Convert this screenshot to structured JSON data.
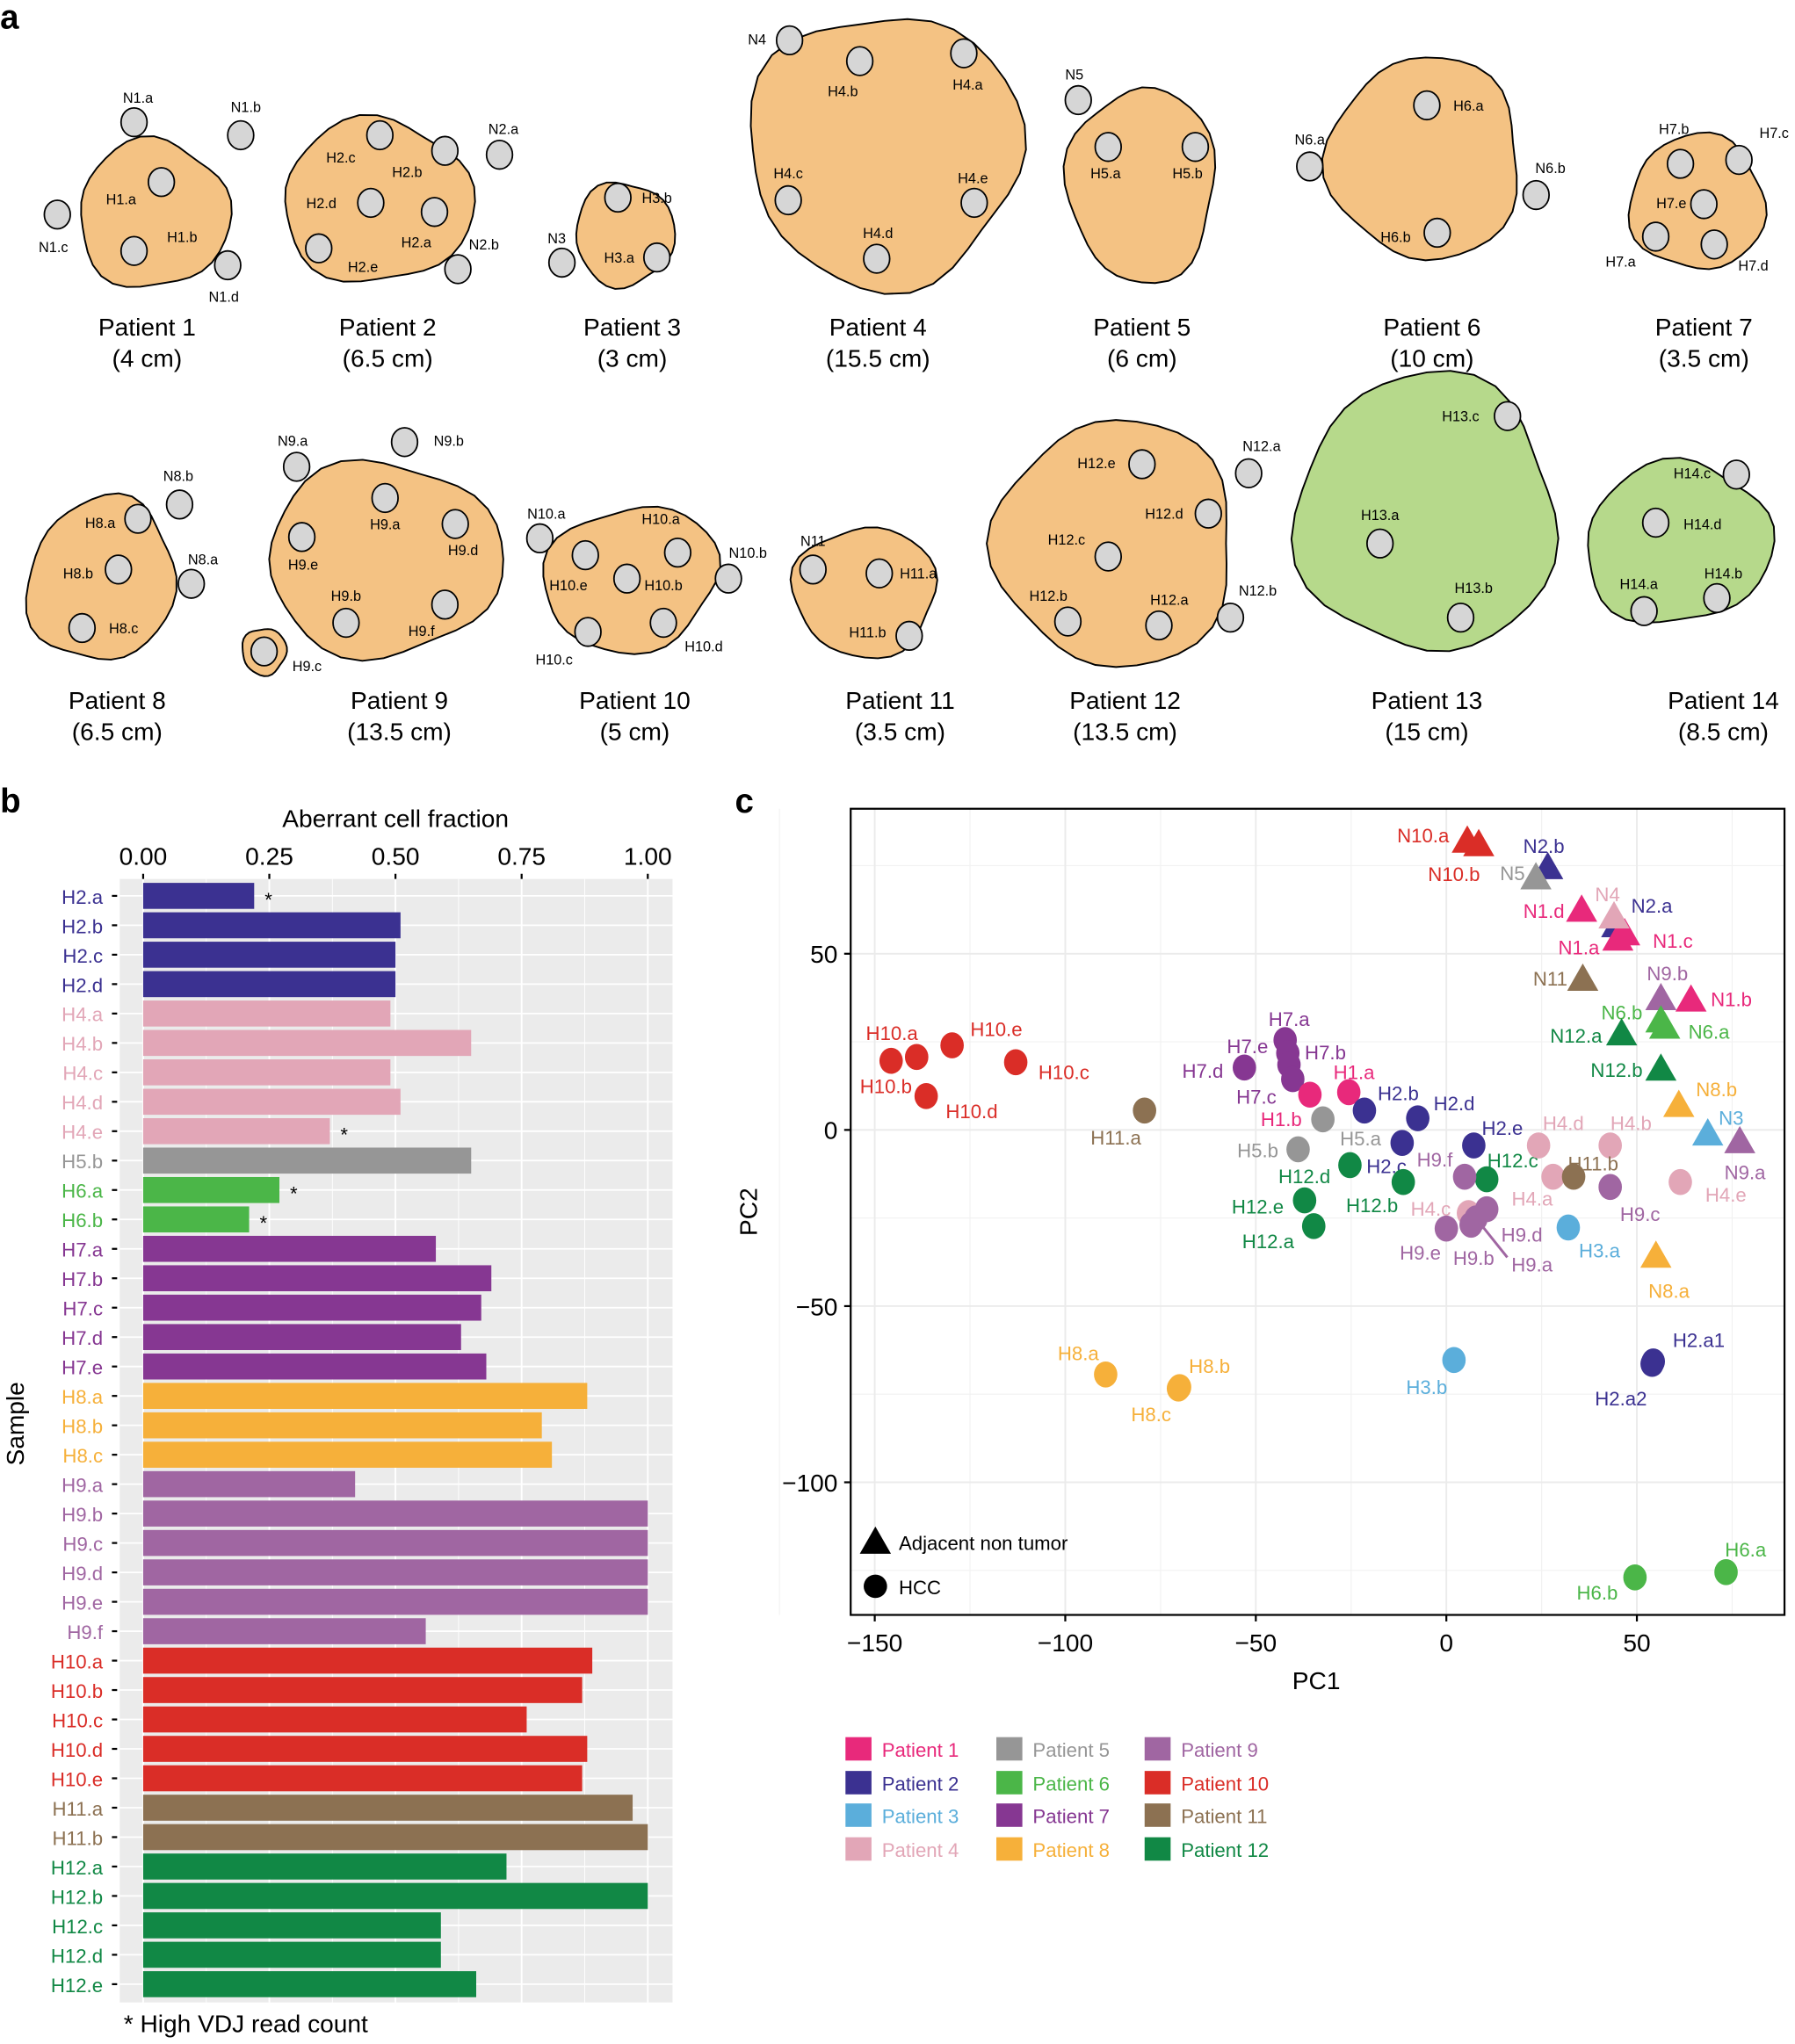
{
  "panel_labels": {
    "a": "a",
    "b": "b",
    "c": "c"
  },
  "patient_colors": {
    "Patient 1": "#E8297B",
    "Patient 2": "#3B3191",
    "Patient 3": "#5BAEDB",
    "Patient 4": "#E2A6B7",
    "Patient 5": "#969696",
    "Patient 6": "#4BB648",
    "Patient 7": "#863792",
    "Patient 8": "#F6B03A",
    "Patient 9": "#A066A2",
    "Patient 10": "#DA2D27",
    "Patient 11": "#8C7152",
    "Patient 12": "#118845"
  },
  "panel_a": {
    "tumor_colors": {
      "hcc_orange": "#F4C283",
      "green": "#B6D98B"
    },
    "patients": [
      {
        "name": "Patient 1",
        "size": "(4 cm)",
        "tumor_color": "#F4C283",
        "samples": [
          "H1.a",
          "H1.b",
          "N1.a",
          "N1.b",
          "N1.c",
          "N1.d"
        ]
      },
      {
        "name": "Patient 2",
        "size": "(6.5 cm)",
        "tumor_color": "#F4C283",
        "samples": [
          "H2.a",
          "H2.b",
          "H2.c",
          "H2.d",
          "H2.e",
          "N2.a",
          "N2.b"
        ]
      },
      {
        "name": "Patient 3",
        "size": "(3 cm)",
        "tumor_color": "#F4C283",
        "samples": [
          "H3.a",
          "H3.b",
          "N3"
        ]
      },
      {
        "name": "Patient 4",
        "size": "(15.5 cm)",
        "tumor_color": "#F4C283",
        "samples": [
          "H4.a",
          "H4.b",
          "H4.c",
          "H4.d",
          "H4.e",
          "N4"
        ]
      },
      {
        "name": "Patient 5",
        "size": "(6 cm)",
        "tumor_color": "#F4C283",
        "samples": [
          "H5.a",
          "H5.b",
          "N5"
        ]
      },
      {
        "name": "Patient 6",
        "size": "(10 cm)",
        "tumor_color": "#F4C283",
        "samples": [
          "H6.a",
          "H6.b",
          "N6.a",
          "N6.b"
        ]
      },
      {
        "name": "Patient 7",
        "size": "(3.5 cm)",
        "tumor_color": "#F4C283",
        "samples": [
          "H7.a",
          "H7.b",
          "H7.c",
          "H7.d",
          "H7.e"
        ]
      },
      {
        "name": "Patient 8",
        "size": "(6.5 cm)",
        "tumor_color": "#F4C283",
        "samples": [
          "H8.a",
          "H8.b",
          "H8.c",
          "N8.a",
          "N8.b"
        ]
      },
      {
        "name": "Patient 9",
        "size": "(13.5 cm)",
        "tumor_color": "#F4C283",
        "samples": [
          "H9.a",
          "H9.b",
          "H9.c",
          "H9.d",
          "H9.e",
          "H9.f",
          "N9.a",
          "N9.b"
        ]
      },
      {
        "name": "Patient 10",
        "size": "(5 cm)",
        "tumor_color": "#F4C283",
        "samples": [
          "H10.a",
          "H10.b",
          "H10.c",
          "H10.d",
          "H10.e",
          "N10.a",
          "N10.b"
        ]
      },
      {
        "name": "Patient 11",
        "size": "(3.5 cm)",
        "tumor_color": "#F4C283",
        "samples": [
          "H11.a",
          "H11.b",
          "N11"
        ]
      },
      {
        "name": "Patient 12",
        "size": "(13.5 cm)",
        "tumor_color": "#F4C283",
        "samples": [
          "H12.a",
          "H12.b",
          "H12.c",
          "H12.d",
          "H12.e",
          "N12.a",
          "N12.b"
        ]
      },
      {
        "name": "Patient 13",
        "size": "(15 cm)",
        "tumor_color": "#B6D98B",
        "samples": [
          "H13.a",
          "H13.b",
          "H13.c"
        ]
      },
      {
        "name": "Patient 14",
        "size": "(8.5 cm)",
        "tumor_color": "#B6D98B",
        "samples": [
          "H14.a",
          "H14.b",
          "H14.c",
          "H14.d"
        ]
      }
    ]
  },
  "chart_data": [
    {
      "type": "bar",
      "orientation": "horizontal",
      "title": "Aberrant cell fraction",
      "xlabel": "Aberrant cell fraction",
      "ylabel": "Sample",
      "xlim": [
        0,
        1
      ],
      "xticks": [
        "0.00",
        "0.25",
        "0.50",
        "0.75",
        "1.00"
      ],
      "grid": true,
      "categories": [
        "H2.a",
        "H2.b",
        "H2.c",
        "H2.d",
        "H4.a",
        "H4.b",
        "H4.c",
        "H4.d",
        "H4.e",
        "H5.b",
        "H6.a",
        "H6.b",
        "H7.a",
        "H7.b",
        "H7.c",
        "H7.d",
        "H7.e",
        "H8.a",
        "H8.b",
        "H8.c",
        "H9.a",
        "H9.b",
        "H9.c",
        "H9.d",
        "H9.e",
        "H9.f",
        "H10.a",
        "H10.b",
        "H10.c",
        "H10.d",
        "H10.e",
        "H11.a",
        "H11.b",
        "H12.a",
        "H12.b",
        "H12.c",
        "H12.d",
        "H12.e"
      ],
      "values": [
        0.22,
        0.51,
        0.5,
        0.5,
        0.49,
        0.65,
        0.49,
        0.51,
        0.37,
        0.65,
        0.27,
        0.21,
        0.58,
        0.69,
        0.67,
        0.63,
        0.68,
        0.88,
        0.79,
        0.81,
        0.42,
        1.0,
        1.0,
        1.0,
        1.0,
        0.56,
        0.89,
        0.87,
        0.76,
        0.88,
        0.87,
        0.97,
        1.0,
        0.72,
        1.0,
        0.59,
        0.59,
        0.66
      ],
      "patients": [
        "Patient 2",
        "Patient 2",
        "Patient 2",
        "Patient 2",
        "Patient 4",
        "Patient 4",
        "Patient 4",
        "Patient 4",
        "Patient 4",
        "Patient 5",
        "Patient 6",
        "Patient 6",
        "Patient 7",
        "Patient 7",
        "Patient 7",
        "Patient 7",
        "Patient 7",
        "Patient 8",
        "Patient 8",
        "Patient 8",
        "Patient 9",
        "Patient 9",
        "Patient 9",
        "Patient 9",
        "Patient 9",
        "Patient 9",
        "Patient 10",
        "Patient 10",
        "Patient 10",
        "Patient 10",
        "Patient 10",
        "Patient 11",
        "Patient 11",
        "Patient 12",
        "Patient 12",
        "Patient 12",
        "Patient 12",
        "Patient 12"
      ],
      "asterisk_samples": [
        "H2.a",
        "H4.e",
        "H6.a",
        "H6.b"
      ],
      "asterisk": "*",
      "footnote": "* High VDJ read count"
    },
    {
      "type": "scatter",
      "xlabel": "PC1",
      "ylabel": "PC2",
      "xlim": [
        -156,
        89
      ],
      "ylim": [
        -138,
        91
      ],
      "xticks": [
        "−150",
        "−100",
        "−50",
        "0",
        "50"
      ],
      "xtick_values": [
        -150,
        -100,
        -50,
        0,
        50
      ],
      "yticks": [
        "50",
        "0",
        "−50",
        "−100"
      ],
      "ytick_values": [
        50,
        0,
        -50,
        -100
      ],
      "grid": true,
      "shape_legend": [
        {
          "shape": "triangle",
          "label": "Adjacent non tumor"
        },
        {
          "shape": "circle",
          "label": "HCC"
        }
      ],
      "shape_legend_placement": "bottom-left inside",
      "color_legend": [
        "Patient 1",
        "Patient 5",
        "Patient 9",
        "Patient 2",
        "Patient 6",
        "Patient 10",
        "Patient 3",
        "Patient 7",
        "Patient 11",
        "Patient 4",
        "Patient 8",
        "Patient 12"
      ],
      "color_legend_placement": "below",
      "points": [
        {
          "name": "N10.a",
          "pc1": 5.5,
          "pc2": 82,
          "patient": "Patient 10",
          "shape": "triangle"
        },
        {
          "name": "N10.b",
          "pc1": 8.5,
          "pc2": 81,
          "patient": "Patient 10",
          "shape": "triangle"
        },
        {
          "name": "N2.b",
          "pc1": 26.6,
          "pc2": 74.5,
          "patient": "Patient 2",
          "shape": "triangle"
        },
        {
          "name": "N5",
          "pc1": 23.5,
          "pc2": 71.6,
          "patient": "Patient 5",
          "shape": "triangle"
        },
        {
          "name": "N1.d",
          "pc1": 35.5,
          "pc2": 62.4,
          "patient": "Patient 1",
          "shape": "triangle"
        },
        {
          "name": "N2.a",
          "pc1": 44.7,
          "pc2": 58,
          "patient": "Patient 2",
          "shape": "triangle"
        },
        {
          "name": "N1.c",
          "pc1": 46.8,
          "pc2": 55.7,
          "patient": "Patient 1",
          "shape": "triangle"
        },
        {
          "name": "N1.a",
          "pc1": 45,
          "pc2": 54.2,
          "patient": "Patient 1",
          "shape": "triangle"
        },
        {
          "name": "N4",
          "pc1": 44,
          "pc2": 60.5,
          "patient": "Patient 4",
          "shape": "triangle"
        },
        {
          "name": "N11",
          "pc1": 35.8,
          "pc2": 42.8,
          "patient": "Patient 11",
          "shape": "triangle"
        },
        {
          "name": "N9.b",
          "pc1": 56.3,
          "pc2": 37.3,
          "patient": "Patient 9",
          "shape": "triangle"
        },
        {
          "name": "N1.b",
          "pc1": 64.2,
          "pc2": 36.9,
          "patient": "Patient 1",
          "shape": "triangle"
        },
        {
          "name": "N6.b",
          "pc1": 56.3,
          "pc2": 31,
          "patient": "Patient 6",
          "shape": "triangle"
        },
        {
          "name": "N6.a",
          "pc1": 57.3,
          "pc2": 29.2,
          "patient": "Patient 6",
          "shape": "triangle"
        },
        {
          "name": "N12.a",
          "pc1": 46,
          "pc2": 27.3,
          "patient": "Patient 12",
          "shape": "triangle"
        },
        {
          "name": "N12.b",
          "pc1": 56.3,
          "pc2": 17.3,
          "patient": "Patient 12",
          "shape": "triangle"
        },
        {
          "name": "N8.b",
          "pc1": 61,
          "pc2": 7,
          "patient": "Patient 8",
          "shape": "triangle"
        },
        {
          "name": "N3",
          "pc1": 68.6,
          "pc2": -1.1,
          "patient": "Patient 3",
          "shape": "triangle"
        },
        {
          "name": "N9.a",
          "pc1": 77,
          "pc2": -3.3,
          "patient": "Patient 9",
          "shape": "triangle"
        },
        {
          "name": "N8.a",
          "pc1": 55,
          "pc2": -35.8,
          "patient": "Patient 8",
          "shape": "triangle"
        },
        {
          "name": "H10.a",
          "pc1": -139,
          "pc2": 20.7,
          "patient": "Patient 10",
          "shape": "circle"
        },
        {
          "name": "H10.b",
          "pc1": -145.7,
          "pc2": 19.6,
          "patient": "Patient 10",
          "shape": "circle"
        },
        {
          "name": "H10.e",
          "pc1": -129.7,
          "pc2": 24,
          "patient": "Patient 10",
          "shape": "circle"
        },
        {
          "name": "H10.d",
          "pc1": -136.5,
          "pc2": 9.6,
          "patient": "Patient 10",
          "shape": "circle"
        },
        {
          "name": "H10.c",
          "pc1": -113,
          "pc2": 19.2,
          "patient": "Patient 10",
          "shape": "circle"
        },
        {
          "name": "H11.a",
          "pc1": -79.2,
          "pc2": 5.5,
          "patient": "Patient 11",
          "shape": "circle"
        },
        {
          "name": "H7.d",
          "pc1": -53,
          "pc2": 17.7,
          "patient": "Patient 7",
          "shape": "circle"
        },
        {
          "name": "H7.a",
          "pc1": -42.3,
          "pc2": 25.5,
          "patient": "Patient 7",
          "shape": "circle"
        },
        {
          "name": "H7.e",
          "pc1": -41.6,
          "pc2": 21.8,
          "patient": "Patient 7",
          "shape": "circle"
        },
        {
          "name": "H7.b",
          "pc1": -41.3,
          "pc2": 18.5,
          "patient": "Patient 7",
          "shape": "circle"
        },
        {
          "name": "H7.c",
          "pc1": -40.3,
          "pc2": 14.4,
          "patient": "Patient 7",
          "shape": "circle"
        },
        {
          "name": "H1.b",
          "pc1": -35.8,
          "pc2": 10,
          "patient": "Patient 1",
          "shape": "circle"
        },
        {
          "name": "H1.a",
          "pc1": -25.6,
          "pc2": 10.7,
          "patient": "Patient 1",
          "shape": "circle"
        },
        {
          "name": "H5.a",
          "pc1": -32.4,
          "pc2": 3,
          "patient": "Patient 5",
          "shape": "circle"
        },
        {
          "name": "H5.b",
          "pc1": -38.9,
          "pc2": -5.5,
          "patient": "Patient 5",
          "shape": "circle"
        },
        {
          "name": "H2.b",
          "pc1": -21.5,
          "pc2": 5.5,
          "patient": "Patient 2",
          "shape": "circle"
        },
        {
          "name": "H2.d",
          "pc1": -7.5,
          "pc2": 3.3,
          "patient": "Patient 2",
          "shape": "circle"
        },
        {
          "name": "H2.e",
          "pc1": 7.2,
          "pc2": -4.4,
          "patient": "Patient 2",
          "shape": "circle"
        },
        {
          "name": "H2.c",
          "pc1": -11.6,
          "pc2": -3.7,
          "patient": "Patient 2",
          "shape": "circle"
        },
        {
          "name": "H12.d",
          "pc1": -25.3,
          "pc2": -10,
          "patient": "Patient 12",
          "shape": "circle"
        },
        {
          "name": "H12.b",
          "pc1": -11.3,
          "pc2": -14.8,
          "patient": "Patient 12",
          "shape": "circle"
        },
        {
          "name": "H12.c",
          "pc1": 10.6,
          "pc2": -14,
          "patient": "Patient 12",
          "shape": "circle"
        },
        {
          "name": "H12.e",
          "pc1": -37.2,
          "pc2": -20,
          "patient": "Patient 12",
          "shape": "circle"
        },
        {
          "name": "H12.a",
          "pc1": -34.8,
          "pc2": -27.3,
          "patient": "Patient 12",
          "shape": "circle"
        },
        {
          "name": "H9.f",
          "pc1": 4.8,
          "pc2": -13.3,
          "patient": "Patient 9",
          "shape": "circle"
        },
        {
          "name": "H4.d",
          "pc1": 24.2,
          "pc2": -4.4,
          "patient": "Patient 4",
          "shape": "circle"
        },
        {
          "name": "H4.b",
          "pc1": 43,
          "pc2": -4.4,
          "patient": "Patient 4",
          "shape": "circle"
        },
        {
          "name": "H4.a",
          "pc1": 28,
          "pc2": -13.3,
          "patient": "Patient 4",
          "shape": "circle"
        },
        {
          "name": "H11.b",
          "pc1": 33.4,
          "pc2": -13.3,
          "patient": "Patient 11",
          "shape": "circle"
        },
        {
          "name": "H9.c",
          "pc1": 43,
          "pc2": -16.2,
          "patient": "Patient 9",
          "shape": "circle"
        },
        {
          "name": "H4.e",
          "pc1": 61.4,
          "pc2": -14.8,
          "patient": "Patient 4",
          "shape": "circle"
        },
        {
          "name": "H4.c",
          "pc1": 5.8,
          "pc2": -23.6,
          "patient": "Patient 4",
          "shape": "circle"
        },
        {
          "name": "H9.d",
          "pc1": 10.6,
          "pc2": -22.5,
          "patient": "Patient 9",
          "shape": "circle"
        },
        {
          "name": "H9.a",
          "pc1": 7.8,
          "pc2": -25.1,
          "patient": "Patient 9",
          "shape": "circle"
        },
        {
          "name": "H9.b",
          "pc1": 6.5,
          "pc2": -26.9,
          "patient": "Patient 9",
          "shape": "circle"
        },
        {
          "name": "H9.e",
          "pc1": 0,
          "pc2": -28,
          "patient": "Patient 9",
          "shape": "circle"
        },
        {
          "name": "H3.a",
          "pc1": 32,
          "pc2": -27.7,
          "patient": "Patient 3",
          "shape": "circle"
        },
        {
          "name": "H8.a",
          "pc1": -89.4,
          "pc2": -69.4,
          "patient": "Patient 8",
          "shape": "circle"
        },
        {
          "name": "H8.b",
          "pc1": -70,
          "pc2": -73,
          "patient": "Patient 8",
          "shape": "circle"
        },
        {
          "name": "H8.c",
          "pc1": -70.3,
          "pc2": -73.4,
          "patient": "Patient 8",
          "shape": "circle"
        },
        {
          "name": "H3.b",
          "pc1": 2,
          "pc2": -65.3,
          "patient": "Patient 3",
          "shape": "circle"
        },
        {
          "name": "H2.a1",
          "pc1": 54.3,
          "pc2": -65.7,
          "patient": "Patient 2",
          "shape": "circle"
        },
        {
          "name": "H2.a2",
          "pc1": 54,
          "pc2": -66.4,
          "patient": "Patient 2",
          "shape": "circle"
        },
        {
          "name": "H6.a",
          "pc1": 73.4,
          "pc2": -125.5,
          "patient": "Patient 6",
          "shape": "circle"
        },
        {
          "name": "H6.b",
          "pc1": 49.5,
          "pc2": -127,
          "patient": "Patient 6",
          "shape": "circle"
        }
      ]
    }
  ]
}
